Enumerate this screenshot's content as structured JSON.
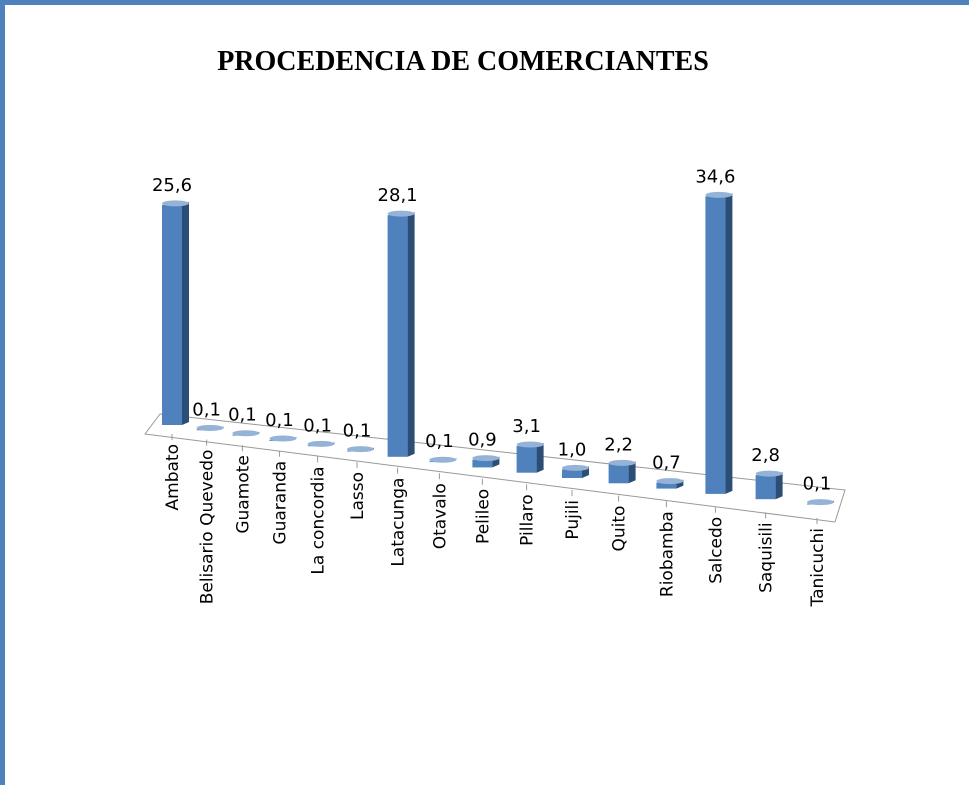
{
  "chart_data": {
    "type": "bar3d",
    "title": "PROCEDENCIA DE COMERCIANTES",
    "categories": [
      "Ambato",
      "Belisario Quevedo",
      "Guamote",
      "Guaranda",
      "La concordia",
      "Lasso",
      "Latacunga",
      "Otavalo",
      "Pelileo",
      "Pillaro",
      "Pujili",
      "Quito",
      "Riobamba",
      "Salcedo",
      "Saquisili",
      "Tanicuchi"
    ],
    "values": [
      25.6,
      0.1,
      0.1,
      0.1,
      0.1,
      0.1,
      28.1,
      0.1,
      0.9,
      3.1,
      1.0,
      2.2,
      0.7,
      34.6,
      2.8,
      0.1
    ],
    "value_labels": [
      "25,6",
      "0,1",
      "0,1",
      "0,1",
      "0,1",
      "0,1",
      "28,1",
      "0,1",
      "0,9",
      "3,1",
      "1,0",
      "2,2",
      "0,7",
      "34,6",
      "2,8",
      "0,1"
    ],
    "color": "#4f81bd"
  }
}
